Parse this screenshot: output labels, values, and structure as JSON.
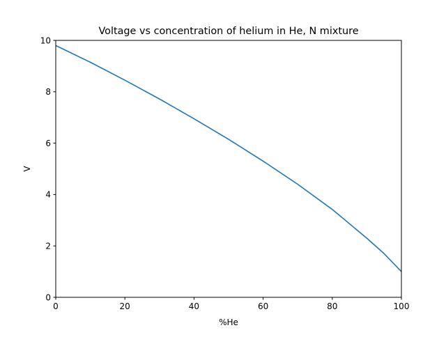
{
  "chart_data": {
    "type": "line",
    "title": "Voltage vs concentration of helium in He, N mixture",
    "xlabel": "%He",
    "ylabel": "V",
    "xlim": [
      0,
      100
    ],
    "ylim": [
      0,
      10
    ],
    "xticks": [
      "0",
      "20",
      "40",
      "60",
      "80",
      "100"
    ],
    "yticks": [
      "0",
      "2",
      "4",
      "6",
      "8",
      "10"
    ],
    "grid": false,
    "legend": "none",
    "series": [
      {
        "color": "#1f77b4",
        "x": [
          0,
          10,
          20,
          30,
          40,
          50,
          60,
          70,
          80,
          90,
          95,
          100
        ],
        "y": [
          9.8,
          9.15,
          8.45,
          7.72,
          6.95,
          6.15,
          5.3,
          4.4,
          3.42,
          2.3,
          1.7,
          1.0
        ]
      }
    ]
  }
}
